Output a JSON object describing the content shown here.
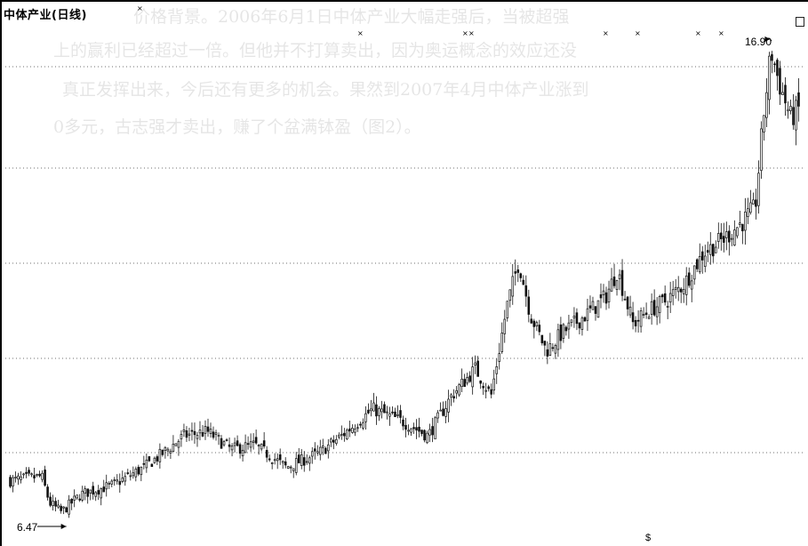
{
  "chart_title": "中体产业(日线)",
  "annotations": {
    "high_label": "16.90",
    "low_label": "6.47",
    "bottom_mark": "$"
  },
  "colors": {
    "candle": "#111111",
    "grid": "#6f6f6f",
    "background": "#ffffff"
  },
  "bleed_text": [
    "价格背景。2006年6月1日中体产业大幅走强后，当被超强",
    "上的赢利已经超过一倍。但他并不打算卖出，因为奥运概念的效应还没",
    "真正发挥出来，今后还有更多的机会。果然到2007年4月中体产业涨到",
    "0多元，古志强才卖出，赚了个盆满钵盈（图2）。"
  ],
  "chart_data": {
    "type": "candlestick",
    "title": "中体产业(日线)",
    "price_range": [
      6.0,
      17.4
    ],
    "grid": "horizontal dotted",
    "low_point": 6.47,
    "high_point": 16.9,
    "close_path": [
      [
        0,
        7.3
      ],
      [
        0.04,
        7.4
      ],
      [
        0.05,
        6.8
      ],
      [
        0.065,
        6.6
      ],
      [
        0.09,
        7.0
      ],
      [
        0.13,
        7.2
      ],
      [
        0.17,
        7.6
      ],
      [
        0.2,
        8.0
      ],
      [
        0.22,
        8.3
      ],
      [
        0.25,
        8.4
      ],
      [
        0.28,
        8.0
      ],
      [
        0.31,
        8.1
      ],
      [
        0.35,
        7.6
      ],
      [
        0.39,
        7.9
      ],
      [
        0.42,
        8.3
      ],
      [
        0.46,
        8.9
      ],
      [
        0.5,
        8.6
      ],
      [
        0.53,
        8.3
      ],
      [
        0.56,
        9.2
      ],
      [
        0.59,
        9.8
      ],
      [
        0.61,
        9.2
      ],
      [
        0.63,
        11.2
      ],
      [
        0.645,
        12.2
      ],
      [
        0.66,
        11.0
      ],
      [
        0.68,
        10.2
      ],
      [
        0.7,
        10.6
      ],
      [
        0.73,
        11.0
      ],
      [
        0.755,
        11.4
      ],
      [
        0.77,
        12.0
      ],
      [
        0.79,
        10.8
      ],
      [
        0.81,
        11.1
      ],
      [
        0.83,
        11.3
      ],
      [
        0.855,
        11.7
      ],
      [
        0.88,
        12.4
      ],
      [
        0.905,
        12.7
      ],
      [
        0.93,
        13.1
      ],
      [
        0.945,
        13.4
      ],
      [
        0.955,
        15.4
      ],
      [
        0.965,
        16.9
      ],
      [
        0.975,
        16.2
      ],
      [
        0.99,
        15.4
      ],
      [
        1.0,
        15.6
      ]
    ]
  }
}
